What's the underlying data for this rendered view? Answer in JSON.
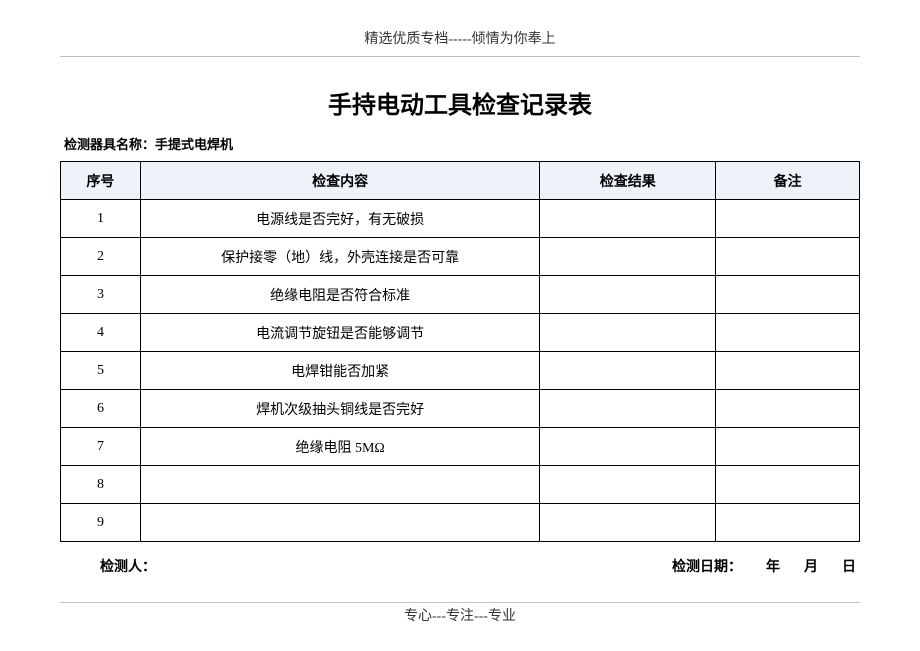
{
  "header": {
    "text": "精选优质专档-----倾情为你奉上"
  },
  "title": "手持电动工具检查记录表",
  "device_label": "检测器具名称：手提式电焊机",
  "table": {
    "header_bg": "#eef3f9",
    "border_color": "#000000",
    "columns": [
      {
        "key": "seq",
        "label": "序号",
        "width_pct": 10
      },
      {
        "key": "content",
        "label": "检查内容",
        "width_pct": 50
      },
      {
        "key": "result",
        "label": "检查结果",
        "width_pct": 22
      },
      {
        "key": "note",
        "label": "备注",
        "width_pct": 18
      }
    ],
    "rows": [
      {
        "seq": "1",
        "content": "电源线是否完好，有无破损",
        "result": "",
        "note": ""
      },
      {
        "seq": "2",
        "content": "保护接零（地）线，外壳连接是否可靠",
        "result": "",
        "note": ""
      },
      {
        "seq": "3",
        "content": "绝缘电阻是否符合标准",
        "result": "",
        "note": ""
      },
      {
        "seq": "4",
        "content": "电流调节旋钮是否能够调节",
        "result": "",
        "note": ""
      },
      {
        "seq": "5",
        "content": "电焊钳能否加紧",
        "result": "",
        "note": ""
      },
      {
        "seq": "6",
        "content": "焊机次级抽头铜线是否完好",
        "result": "",
        "note": ""
      },
      {
        "seq": "7",
        "content": "绝缘电阻 5MΩ",
        "result": "",
        "note": ""
      },
      {
        "seq": "8",
        "content": "",
        "result": "",
        "note": ""
      },
      {
        "seq": "9",
        "content": "",
        "result": "",
        "note": ""
      }
    ]
  },
  "signature": {
    "inspector_label": "检测人：",
    "date_label": "检测日期：",
    "year": "年",
    "month": "月",
    "day": "日"
  },
  "footer": {
    "text": "专心---专注---专业"
  }
}
